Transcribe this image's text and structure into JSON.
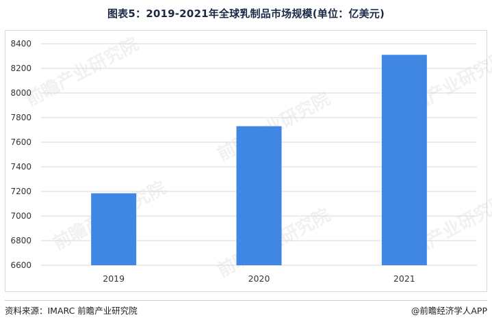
{
  "title": "图表5：2019-2021年全球乳制品市场规模(单位：亿美元)",
  "footer": {
    "source": "资料来源：IMARC 前瞻产业研究院",
    "app": "@前瞻经济学人APP"
  },
  "watermark": "前瞻产业研究院",
  "colors": {
    "bar": "#3f87e3",
    "grid": "#d9d9d9",
    "axis_text": "#333333"
  },
  "chart_data": {
    "type": "bar",
    "title": "图表5：2019-2021年全球乳制品市场规模(单位：亿美元)",
    "categories": [
      "2019",
      "2020",
      "2021"
    ],
    "values": [
      7185,
      7730,
      8310
    ],
    "ylim": [
      6600,
      8400
    ],
    "yticks": [
      6600,
      6800,
      7000,
      7200,
      7400,
      7600,
      7800,
      8000,
      8200,
      8400
    ],
    "grid": true,
    "legend": "none",
    "xlabel": "",
    "ylabel": ""
  }
}
